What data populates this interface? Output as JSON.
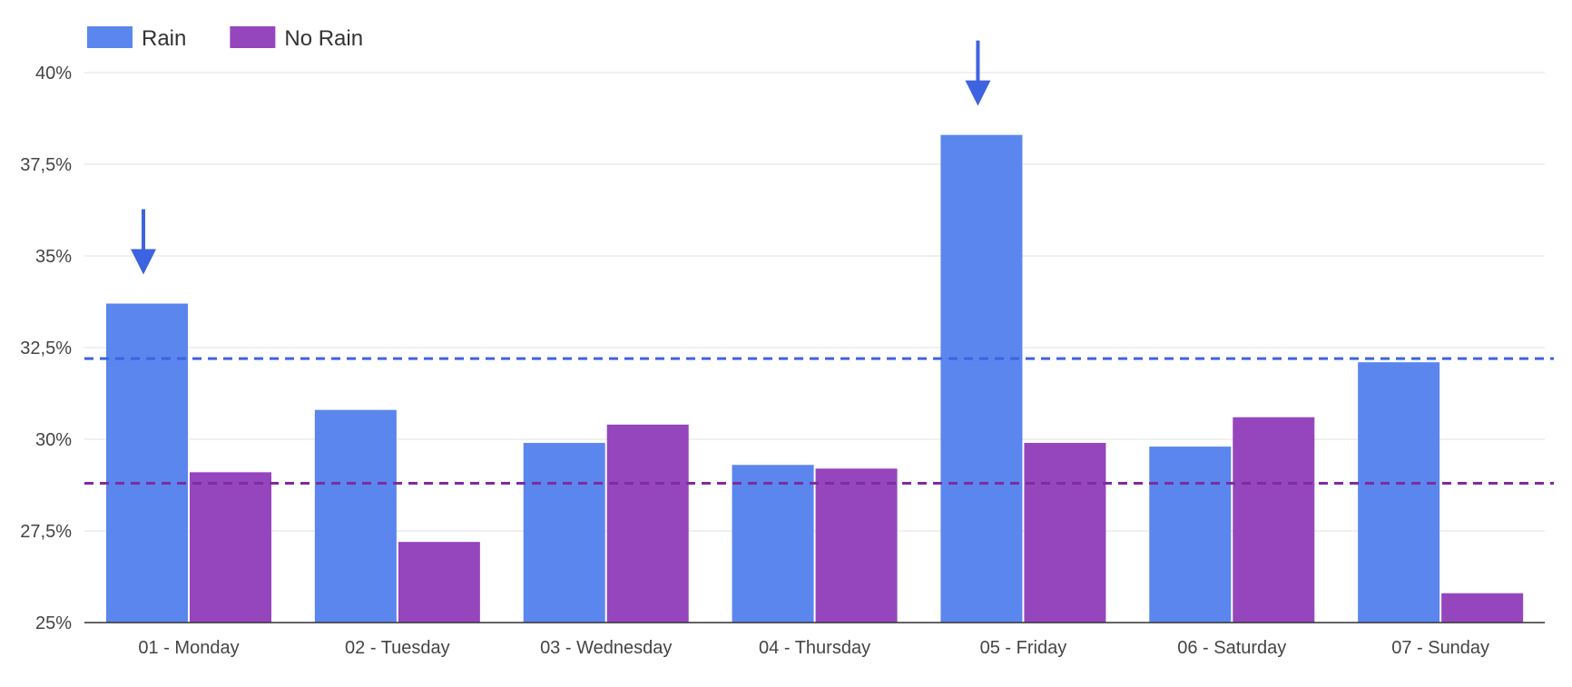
{
  "chart_data": {
    "type": "bar",
    "title": "",
    "xlabel": "",
    "ylabel": "",
    "categories": [
      "01 - Monday",
      "02 - Tuesday",
      "03 - Wednesday",
      "04 - Thursday",
      "05 - Friday",
      "06 - Saturday",
      "07 - Sunday"
    ],
    "series": [
      {
        "name": "Rain",
        "color": "#5b86ee",
        "values": [
          33.7,
          30.8,
          29.9,
          29.3,
          38.3,
          29.8,
          32.1
        ]
      },
      {
        "name": "No Rain",
        "color": "#9546bd",
        "values": [
          29.1,
          27.2,
          30.4,
          29.2,
          29.9,
          30.6,
          25.8
        ]
      }
    ],
    "ylim": [
      25,
      40
    ],
    "y_ticks": [
      {
        "value": 25,
        "label": "25%"
      },
      {
        "value": 27.5,
        "label": "27,5%"
      },
      {
        "value": 30,
        "label": "30%"
      },
      {
        "value": 32.5,
        "label": "32,5%"
      },
      {
        "value": 35,
        "label": "35%"
      },
      {
        "value": 37.5,
        "label": "37,5%"
      },
      {
        "value": 40,
        "label": "40%"
      }
    ],
    "reference_lines": [
      {
        "series": "Rain",
        "value": 32.2,
        "color": "#3d63e0",
        "style": "dashed"
      },
      {
        "series": "No Rain",
        "value": 28.8,
        "color": "#7e2c9e",
        "style": "dashed"
      }
    ],
    "annotations": [
      {
        "type": "arrow-down",
        "category": "01 - Monday",
        "series": "Rain",
        "color": "#3d63e0"
      },
      {
        "type": "arrow-down",
        "category": "05 - Friday",
        "series": "Rain",
        "color": "#3d63e0"
      }
    ],
    "grid": true,
    "legend": {
      "position": "top-left"
    }
  }
}
